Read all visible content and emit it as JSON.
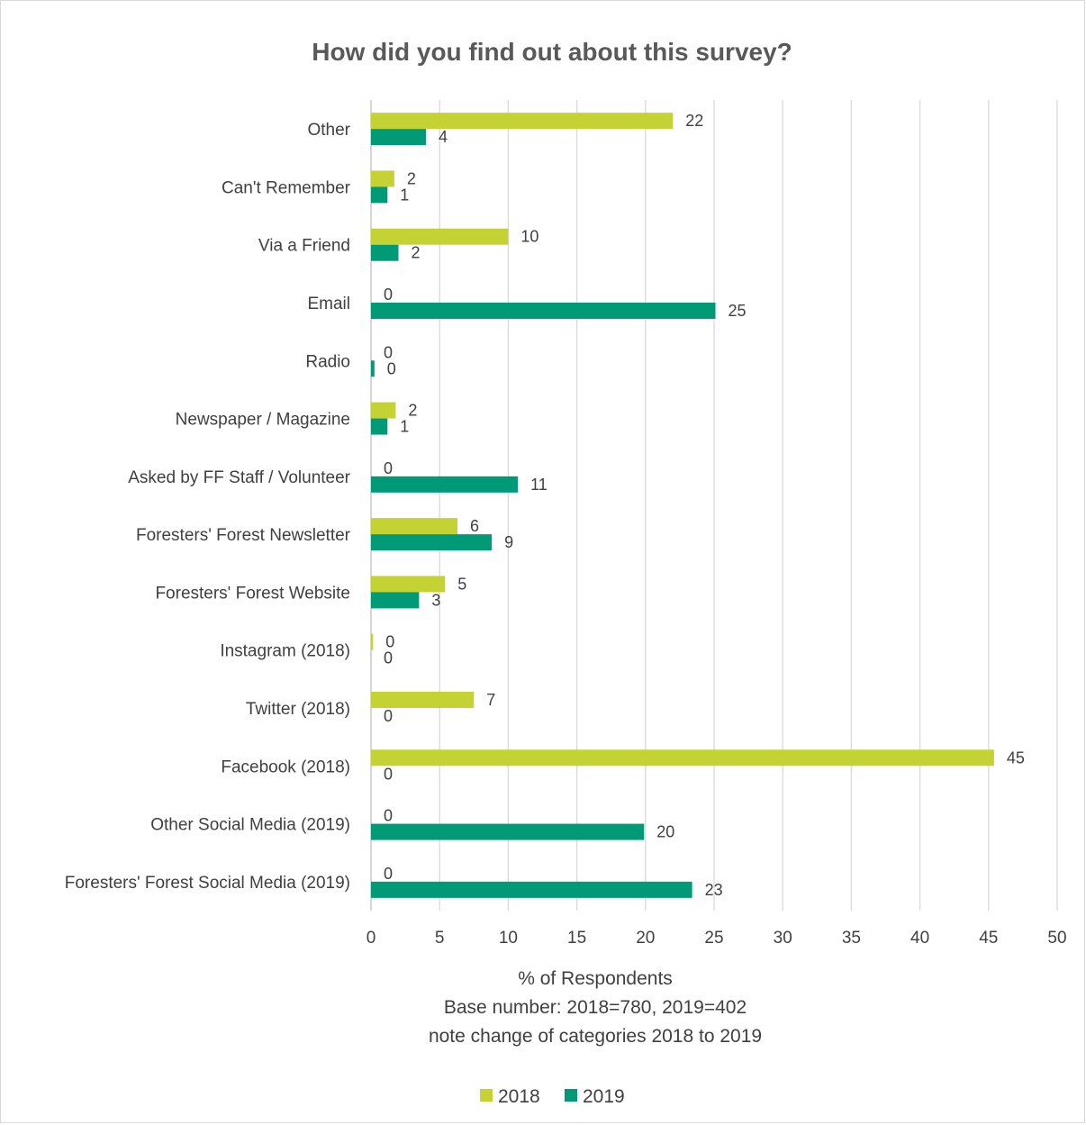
{
  "chart_data": {
    "type": "bar",
    "orientation": "horizontal",
    "title": "How did you find out about this survey?",
    "xlabel_lines": [
      "% of Respondents",
      "Base number: 2018=780, 2019=402",
      "note change of categories 2018 to 2019"
    ],
    "xlim": [
      0,
      50
    ],
    "xticks": [
      0,
      5,
      10,
      15,
      20,
      25,
      30,
      35,
      40,
      45,
      50
    ],
    "grid": "vertical",
    "legend_position": "bottom",
    "categories": [
      "Other",
      "Can't Remember",
      "Via a Friend",
      "Email",
      "Radio",
      "Newspaper / Magazine",
      "Asked by FF Staff / Volunteer",
      "Foresters' Forest Newsletter",
      "Foresters' Forest Website",
      "Instagram (2018)",
      "Twitter (2018)",
      "Facebook (2018)",
      "Other Social Media (2019)",
      "Foresters' Forest Social Media (2019)"
    ],
    "series": [
      {
        "name": "2018",
        "color": "#c4d234",
        "values": [
          22,
          1.7,
          10,
          0,
          0,
          1.8,
          0,
          6.3,
          5.4,
          0.15,
          7.5,
          45.4,
          0,
          0
        ],
        "labels": [
          "22",
          "2",
          "10",
          "0",
          "0",
          "2",
          "0",
          "6",
          "5",
          "0",
          "7",
          "45",
          "0",
          "0"
        ]
      },
      {
        "name": "2019",
        "color": "#009a77",
        "values": [
          4,
          1.2,
          2,
          25.1,
          0.25,
          1.2,
          10.7,
          8.8,
          3.5,
          0,
          0,
          0,
          19.9,
          23.4
        ],
        "labels": [
          "4",
          "1",
          "2",
          "25",
          "0",
          "1",
          "11",
          "9",
          "3",
          "0",
          "0",
          "0",
          "20",
          "23"
        ]
      }
    ]
  }
}
